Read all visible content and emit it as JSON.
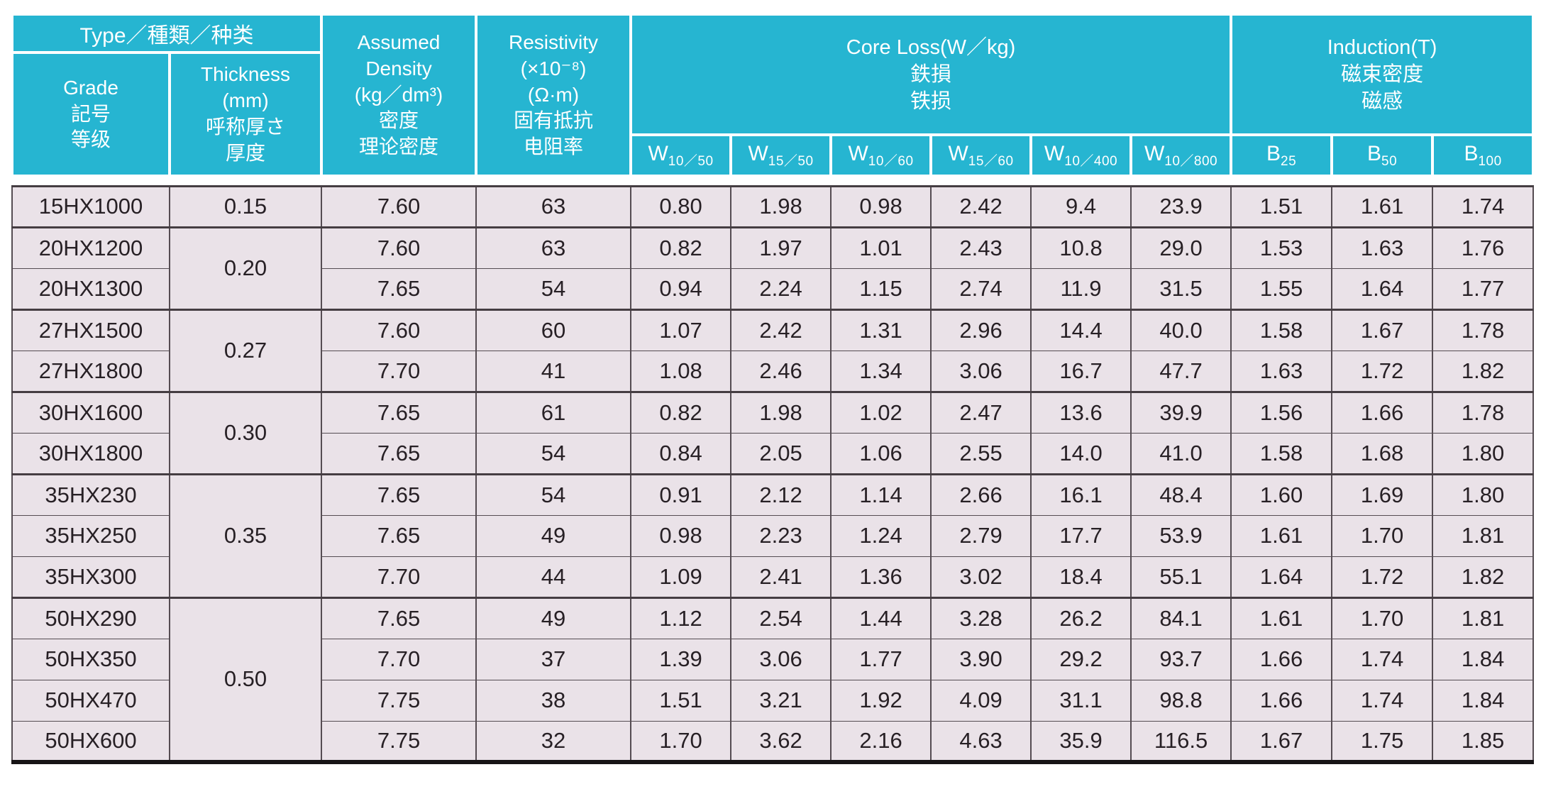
{
  "colors": {
    "header_bg": "#26b5d1",
    "header_text": "#ffffff",
    "body_bg": "#eae2e8",
    "body_text": "#272025",
    "grid_line": "#554c52",
    "group_line": "#453d42",
    "bottom_rule": "#171416"
  },
  "header": {
    "type": "Type／種類／种类",
    "grade": "Grade\n記号\n等级",
    "thickness": "Thickness\n(mm)\n呼称厚さ\n厚度",
    "density": "Assumed\nDensity\n(kg／dm³)\n密度\n理论密度",
    "resistivity": "Resistivity\n(×10⁻⁸)\n(Ω·m)\n固有抵抗\n电阻率",
    "core_loss": "Core Loss(W／kg)\n鉄損\n铁损",
    "induction": "Induction(T)\n磁束密度\n磁感",
    "core_loss_subcols": [
      {
        "prefix": "W",
        "sub": "10／50"
      },
      {
        "prefix": "W",
        "sub": "15／50"
      },
      {
        "prefix": "W",
        "sub": "10／60"
      },
      {
        "prefix": "W",
        "sub": "15／60"
      },
      {
        "prefix": "W",
        "sub": "10／400"
      },
      {
        "prefix": "W",
        "sub": "10／800"
      }
    ],
    "induction_subcols": [
      {
        "prefix": "B",
        "sub": "25"
      },
      {
        "prefix": "B",
        "sub": "50"
      },
      {
        "prefix": "B",
        "sub": "100"
      }
    ]
  },
  "body": {
    "value_columns": [
      "density",
      "resistivity",
      "W10/50",
      "W15/50",
      "W10/60",
      "W15/60",
      "W10/400",
      "W10/800",
      "B25",
      "B50",
      "B100"
    ],
    "groups": [
      {
        "thickness": "0.15",
        "rows": [
          {
            "grade": "15HX1000",
            "values": [
              "7.60",
              "63",
              "0.80",
              "1.98",
              "0.98",
              "2.42",
              "9.4",
              "23.9",
              "1.51",
              "1.61",
              "1.74"
            ]
          }
        ]
      },
      {
        "thickness": "0.20",
        "rows": [
          {
            "grade": "20HX1200",
            "values": [
              "7.60",
              "63",
              "0.82",
              "1.97",
              "1.01",
              "2.43",
              "10.8",
              "29.0",
              "1.53",
              "1.63",
              "1.76"
            ]
          },
          {
            "grade": "20HX1300",
            "values": [
              "7.65",
              "54",
              "0.94",
              "2.24",
              "1.15",
              "2.74",
              "11.9",
              "31.5",
              "1.55",
              "1.64",
              "1.77"
            ]
          }
        ]
      },
      {
        "thickness": "0.27",
        "rows": [
          {
            "grade": "27HX1500",
            "values": [
              "7.60",
              "60",
              "1.07",
              "2.42",
              "1.31",
              "2.96",
              "14.4",
              "40.0",
              "1.58",
              "1.67",
              "1.78"
            ]
          },
          {
            "grade": "27HX1800",
            "values": [
              "7.70",
              "41",
              "1.08",
              "2.46",
              "1.34",
              "3.06",
              "16.7",
              "47.7",
              "1.63",
              "1.72",
              "1.82"
            ]
          }
        ]
      },
      {
        "thickness": "0.30",
        "rows": [
          {
            "grade": "30HX1600",
            "values": [
              "7.65",
              "61",
              "0.82",
              "1.98",
              "1.02",
              "2.47",
              "13.6",
              "39.9",
              "1.56",
              "1.66",
              "1.78"
            ]
          },
          {
            "grade": "30HX1800",
            "values": [
              "7.65",
              "54",
              "0.84",
              "2.05",
              "1.06",
              "2.55",
              "14.0",
              "41.0",
              "1.58",
              "1.68",
              "1.80"
            ]
          }
        ]
      },
      {
        "thickness": "0.35",
        "rows": [
          {
            "grade": "35HX230",
            "values": [
              "7.65",
              "54",
              "0.91",
              "2.12",
              "1.14",
              "2.66",
              "16.1",
              "48.4",
              "1.60",
              "1.69",
              "1.80"
            ]
          },
          {
            "grade": "35HX250",
            "values": [
              "7.65",
              "49",
              "0.98",
              "2.23",
              "1.24",
              "2.79",
              "17.7",
              "53.9",
              "1.61",
              "1.70",
              "1.81"
            ]
          },
          {
            "grade": "35HX300",
            "values": [
              "7.70",
              "44",
              "1.09",
              "2.41",
              "1.36",
              "3.02",
              "18.4",
              "55.1",
              "1.64",
              "1.72",
              "1.82"
            ]
          }
        ]
      },
      {
        "thickness": "0.50",
        "rows": [
          {
            "grade": "50HX290",
            "values": [
              "7.65",
              "49",
              "1.12",
              "2.54",
              "1.44",
              "3.28",
              "26.2",
              "84.1",
              "1.61",
              "1.70",
              "1.81"
            ]
          },
          {
            "grade": "50HX350",
            "values": [
              "7.70",
              "37",
              "1.39",
              "3.06",
              "1.77",
              "3.90",
              "29.2",
              "93.7",
              "1.66",
              "1.74",
              "1.84"
            ]
          },
          {
            "grade": "50HX470",
            "values": [
              "7.75",
              "38",
              "1.51",
              "3.21",
              "1.92",
              "4.09",
              "31.1",
              "98.8",
              "1.66",
              "1.74",
              "1.84"
            ]
          },
          {
            "grade": "50HX600",
            "values": [
              "7.75",
              "32",
              "1.70",
              "3.62",
              "2.16",
              "4.63",
              "35.9",
              "116.5",
              "1.67",
              "1.75",
              "1.85"
            ]
          }
        ]
      }
    ]
  }
}
